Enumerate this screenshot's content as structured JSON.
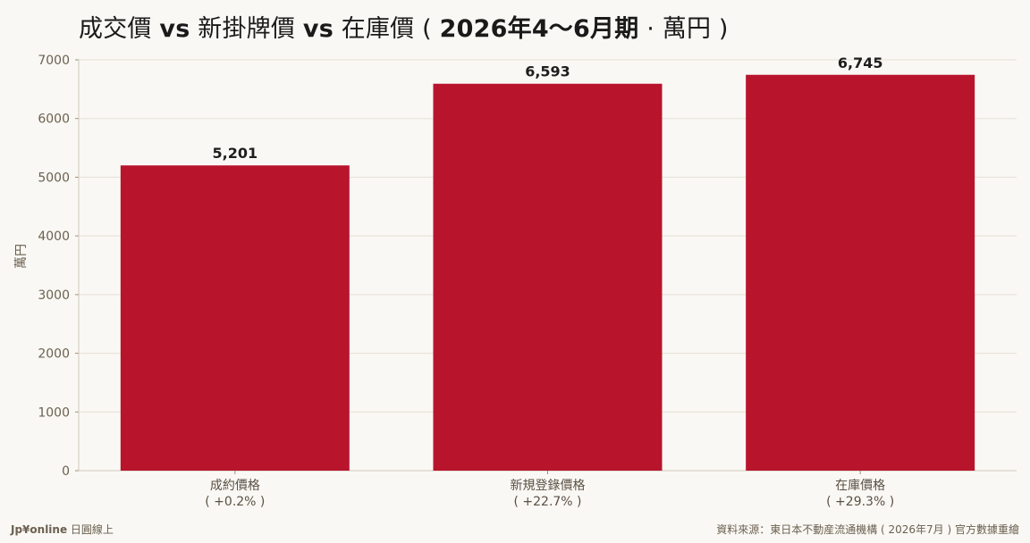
{
  "title": {
    "part1": "成交價",
    "vs1": "vs",
    "part2": "新掛牌價",
    "vs2": "vs",
    "part3": "在庫價 ( ",
    "period_bold": "2026年4〜6月期",
    "part4": " · 萬円 )"
  },
  "chart_data": {
    "type": "bar",
    "categories": [
      "成約價格",
      "新規登錄價格",
      "在庫價格"
    ],
    "category_notes": [
      "( +0.2% )",
      "( +22.7% )",
      "( +29.3% )"
    ],
    "values": [
      5201,
      6593,
      6745
    ],
    "value_labels": [
      "5,201",
      "6,593",
      "6,745"
    ],
    "ylabel": "萬円",
    "ylim": [
      0,
      7000
    ],
    "yticks": [
      0,
      1000,
      2000,
      3000,
      4000,
      5000,
      6000,
      7000
    ],
    "grid": true,
    "bar_color": "#b8152d"
  },
  "footer": {
    "brand": "Jp¥online",
    "brand_suffix": " 日圓線上",
    "source": "資料來源：東日本不動産流通機構 ( 2026年7月 ) 官方數據重繪"
  }
}
